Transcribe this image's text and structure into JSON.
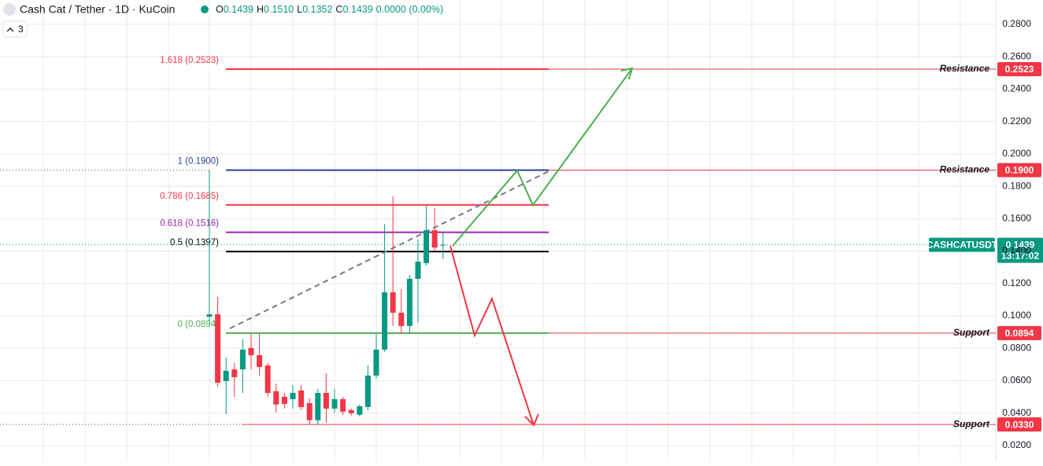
{
  "header": {
    "symbol": "Cash Cat / Tether · 1D · KuCoin",
    "ohlc": [
      {
        "key": "O",
        "value": "0.1439"
      },
      {
        "key": "H",
        "value": "0.1510"
      },
      {
        "key": "L",
        "value": "0.1352"
      },
      {
        "key": "C",
        "value": "0.1439"
      }
    ],
    "change": "0.0000 (0.00%)",
    "indicators": "3"
  },
  "chart_data": {
    "type": "candlestick",
    "up_color": "#089981",
    "down_color": "#f23645",
    "ylim": [
      0.0098,
      0.295
    ],
    "yticks": [
      {
        "value": 0.28,
        "label": "0.2800"
      },
      {
        "value": 0.26,
        "label": "0.2600"
      },
      {
        "value": 0.24,
        "label": "0.2400"
      },
      {
        "value": 0.22,
        "label": "0.2200"
      },
      {
        "value": 0.2,
        "label": "0.2000"
      },
      {
        "value": 0.18,
        "label": "0.1800"
      },
      {
        "value": 0.16,
        "label": "0.1600"
      },
      {
        "value": 0.14,
        "label": "0.1400"
      },
      {
        "value": 0.12,
        "label": "0.1200"
      },
      {
        "value": 0.1,
        "label": "0.1000"
      },
      {
        "value": 0.08,
        "label": "0.0800"
      },
      {
        "value": 0.06,
        "label": "0.0600"
      },
      {
        "value": 0.04,
        "label": "0.0400"
      },
      {
        "value": 0.02,
        "label": "0.0200"
      }
    ],
    "grid": true,
    "candles": [
      {
        "open": 0.0995,
        "high": 0.19,
        "low": 0.096,
        "close": 0.101
      },
      {
        "open": 0.101,
        "high": 0.1117,
        "low": 0.0564,
        "close": 0.0588
      },
      {
        "open": 0.0598,
        "high": 0.0744,
        "low": 0.0394,
        "close": 0.0661
      },
      {
        "open": 0.067,
        "high": 0.0709,
        "low": 0.0501,
        "close": 0.0622
      },
      {
        "open": 0.067,
        "high": 0.0855,
        "low": 0.0525,
        "close": 0.0792
      },
      {
        "open": 0.0802,
        "high": 0.0889,
        "low": 0.067,
        "close": 0.0758
      },
      {
        "open": 0.0758,
        "high": 0.0889,
        "low": 0.0632,
        "close": 0.0685
      },
      {
        "open": 0.0695,
        "high": 0.0709,
        "low": 0.0501,
        "close": 0.0525
      },
      {
        "open": 0.0535,
        "high": 0.0583,
        "low": 0.0404,
        "close": 0.0453
      },
      {
        "open": 0.0501,
        "high": 0.0525,
        "low": 0.0428,
        "close": 0.0457
      },
      {
        "open": 0.0486,
        "high": 0.0574,
        "low": 0.0428,
        "close": 0.0525
      },
      {
        "open": 0.054,
        "high": 0.0574,
        "low": 0.0419,
        "close": 0.0438
      },
      {
        "open": 0.0462,
        "high": 0.0491,
        "low": 0.0331,
        "close": 0.0356
      },
      {
        "open": 0.0356,
        "high": 0.055,
        "low": 0.0331,
        "close": 0.0525
      },
      {
        "open": 0.0525,
        "high": 0.0646,
        "low": 0.0341,
        "close": 0.0428
      },
      {
        "open": 0.0428,
        "high": 0.055,
        "low": 0.0404,
        "close": 0.0486
      },
      {
        "open": 0.0486,
        "high": 0.0501,
        "low": 0.039,
        "close": 0.0409
      },
      {
        "open": 0.0419,
        "high": 0.0428,
        "low": 0.0385,
        "close": 0.0399
      },
      {
        "open": 0.039,
        "high": 0.0453,
        "low": 0.038,
        "close": 0.0443
      },
      {
        "open": 0.0438,
        "high": 0.0695,
        "low": 0.0419,
        "close": 0.0632
      },
      {
        "open": 0.0632,
        "high": 0.0889,
        "low": 0.0613,
        "close": 0.0792
      },
      {
        "open": 0.0792,
        "high": 0.1568,
        "low": 0.0777,
        "close": 0.1146
      },
      {
        "open": 0.1146,
        "high": 0.1738,
        "low": 0.0938,
        "close": 0.102
      },
      {
        "open": 0.102,
        "high": 0.1166,
        "low": 0.0889,
        "close": 0.0938
      },
      {
        "open": 0.0938,
        "high": 0.1253,
        "low": 0.0889,
        "close": 0.1229
      },
      {
        "open": 0.1229,
        "high": 0.1471,
        "low": 0.0959,
        "close": 0.1335
      },
      {
        "open": 0.1326,
        "high": 0.168,
        "low": 0.1311,
        "close": 0.1529
      },
      {
        "open": 0.1529,
        "high": 0.1665,
        "low": 0.1398,
        "close": 0.1422
      },
      {
        "open": 0.1439,
        "high": 0.151,
        "low": 0.1352,
        "close": 0.1439
      }
    ],
    "fibonacci": [
      {
        "label": "1.618 (0.2523)",
        "value": 0.2523,
        "color": "#f23645"
      },
      {
        "label": "1 (0.1900)",
        "value": 0.19,
        "color": "#2a3f9e"
      },
      {
        "label": "0.786 (0.1685)",
        "value": 0.1685,
        "color": "#f23645"
      },
      {
        "label": "0.618 (0.1516)",
        "value": 0.1516,
        "color": "#9c27b0"
      },
      {
        "label": "0.5 (0.1397)",
        "value": 0.1397,
        "color": "#000000"
      },
      {
        "label": "0 (0.0894)",
        "value": 0.0894,
        "color": "#4caf50"
      }
    ],
    "levels": [
      {
        "name": "Resistance",
        "value": 0.2523,
        "label": "0.2523"
      },
      {
        "name": "Resistance",
        "value": 0.19,
        "label": "0.1900"
      },
      {
        "name": "Support",
        "value": 0.0894,
        "label": "0.0894"
      },
      {
        "name": "Support",
        "value": 0.033,
        "label": "0.0330"
      }
    ],
    "last_price": {
      "name": "CASHCATUSDT",
      "value": 0.1439,
      "label": "0.1439",
      "countdown": "13:17:02"
    }
  }
}
